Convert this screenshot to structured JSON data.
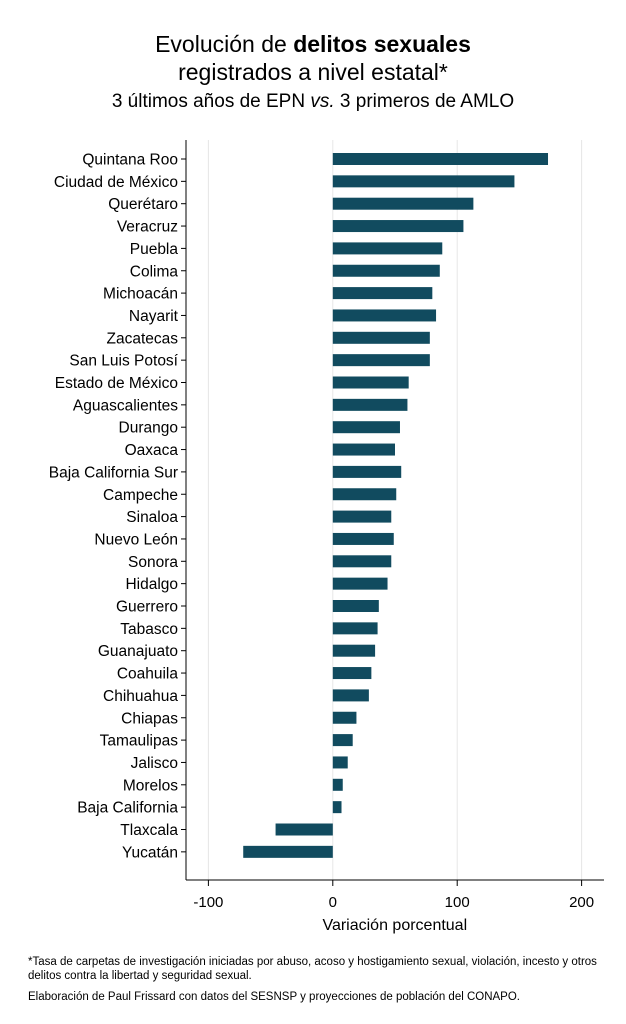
{
  "header": {
    "title_pre": "Evolución de ",
    "title_bold": "delitos sexuales",
    "title_line2": "registrados a nivel estatal*",
    "subtitle_pre": "3 últimos años de EPN ",
    "subtitle_italic": "vs.",
    "subtitle_post": " 3 primeros de AMLO"
  },
  "footer": {
    "note": "*Tasa de carpetas de investigación iniciadas por abuso, acoso y hostigamiento sexual, violación, incesto y otros delitos contra la libertad y seguridad sexual.",
    "credit": "Elaboración de Paul Frissard con datos del SESNSP y proyecciones de población del CONAPO."
  },
  "chart_data": {
    "type": "bar",
    "orientation": "horizontal",
    "categories": [
      "Quintana Roo",
      "Ciudad de México",
      "Querétaro",
      "Veracruz",
      "Puebla",
      "Colima",
      "Michoacán",
      "Nayarit",
      "Zacatecas",
      "San Luis Potosí",
      "Estado de México",
      "Aguascalientes",
      "Durango",
      "Oaxaca",
      "Baja California Sur",
      "Campeche",
      "Sinaloa",
      "Nuevo León",
      "Sonora",
      "Hidalgo",
      "Guerrero",
      "Tabasco",
      "Guanajuato",
      "Coahuila",
      "Chihuahua",
      "Chiapas",
      "Tamaulipas",
      "Jalisco",
      "Morelos",
      "Baja California",
      "Tlaxcala",
      "Yucatán"
    ],
    "values": [
      173,
      146,
      113,
      105,
      88,
      86,
      80,
      83,
      78,
      78,
      61,
      60,
      54,
      50,
      55,
      51,
      47,
      49,
      47,
      44,
      37,
      36,
      34,
      31,
      29,
      19,
      16,
      12,
      8,
      7,
      -46,
      -72
    ],
    "xlabel": "Variación porcentual",
    "xlim": [
      -118,
      218
    ],
    "xticks": [
      -100,
      0,
      100,
      200
    ],
    "xtick_labels": [
      "-100",
      "0",
      "100",
      "200"
    ],
    "grid": "vertical",
    "colors": {
      "bar": "#114b5f",
      "grid": "#e6e6e6",
      "axis": "#000000"
    }
  }
}
